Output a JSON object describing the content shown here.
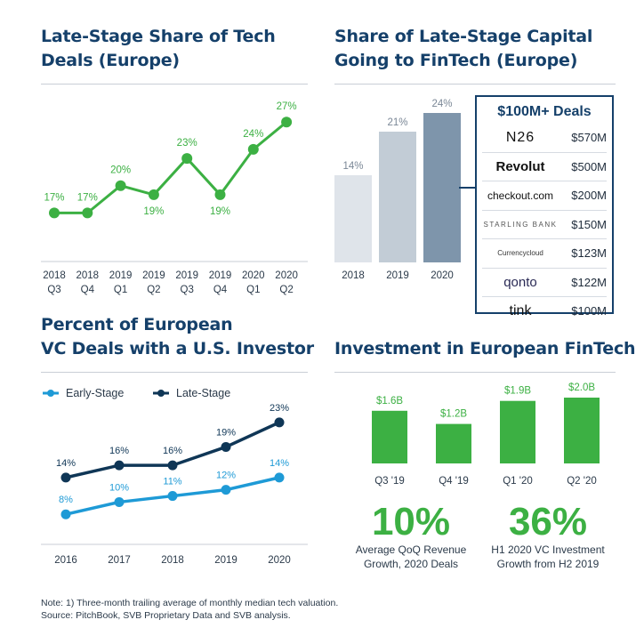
{
  "titles": {
    "late_stage_share": [
      "Late-Stage Share of Tech",
      "Deals (Europe)"
    ],
    "fintech_share": [
      "Share of Late-Stage Capital",
      "Going to FinTech (Europe)"
    ],
    "us_investor": [
      "Percent of European",
      "VC Deals with a U.S. Investor"
    ],
    "investment": "Investment in European FinTech"
  },
  "colors": {
    "green": "#3cb043",
    "navy": "#15406a",
    "darknavy": "#0f3656",
    "lightblue": "#1e9ad6"
  },
  "chart_data": [
    {
      "type": "line",
      "categories": [
        [
          "2018",
          "Q3"
        ],
        [
          "2018",
          "Q4"
        ],
        [
          "2019",
          "Q1"
        ],
        [
          "2019",
          "Q2"
        ],
        [
          "2019",
          "Q3"
        ],
        [
          "2019",
          "Q4"
        ],
        [
          "2020",
          "Q1"
        ],
        [
          "2020",
          "Q2"
        ]
      ],
      "values": [
        17,
        17,
        20,
        19,
        23,
        19,
        24,
        27
      ],
      "labels": [
        "17%",
        "17%",
        "20%",
        "19%",
        "23%",
        "19%",
        "24%",
        "27%"
      ],
      "ylim": [
        14,
        28
      ]
    },
    {
      "type": "bar",
      "categories": [
        "2018",
        "2019",
        "2020"
      ],
      "values": [
        14,
        21,
        24
      ],
      "labels": [
        "14%",
        "21%",
        "24%"
      ],
      "colors": [
        "#dfe4ea",
        "#c2ccd6",
        "#7e95ab"
      ],
      "ylim": [
        0,
        24
      ]
    },
    {
      "type": "line",
      "categories": [
        "2016",
        "2017",
        "2018",
        "2019",
        "2020"
      ],
      "series": [
        {
          "name": "Early-Stage",
          "values": [
            8,
            10,
            11,
            12,
            14
          ],
          "labels": [
            "8%",
            "10%",
            "11%",
            "12%",
            "14%"
          ],
          "color": "#1e9ad6"
        },
        {
          "name": "Late-Stage",
          "values": [
            14,
            16,
            16,
            19,
            23
          ],
          "labels": [
            "14%",
            "16%",
            "16%",
            "19%",
            "23%"
          ],
          "color": "#0f3656"
        }
      ],
      "ylim": [
        6,
        24
      ]
    },
    {
      "type": "bar",
      "categories": [
        "Q3 '19",
        "Q4 '19",
        "Q1 '20",
        "Q2 '20"
      ],
      "values": [
        1.6,
        1.2,
        1.9,
        2.0
      ],
      "labels": [
        "$1.6B",
        "$1.2B",
        "$1.9B",
        "$2.0B"
      ],
      "ylim": [
        0,
        2.0
      ]
    }
  ],
  "deals": {
    "heading": "$100M+ Deals",
    "rows": [
      {
        "company": "N26",
        "amount": "$570M"
      },
      {
        "company": "Revolut",
        "amount": "$500M"
      },
      {
        "company": "checkout.com",
        "amount": "$200M"
      },
      {
        "company": "STARLING BANK",
        "amount": "$150M"
      },
      {
        "company": "Currencycloud",
        "amount": "$123M"
      },
      {
        "company": "qonto",
        "amount": "$122M"
      },
      {
        "company": "tink",
        "amount": "$100M"
      }
    ]
  },
  "stats": [
    {
      "value": "10%",
      "caption": [
        "Average QoQ Revenue",
        "Growth, 2020 Deals"
      ]
    },
    {
      "value": "36%",
      "caption": [
        "H1 2020 VC Investment",
        "Growth from H2 2019"
      ]
    }
  ],
  "notes": [
    "Note: 1) Three-month trailing average of monthly median tech valuation.",
    "Source: PitchBook, SVB Proprietary Data and SVB analysis."
  ]
}
